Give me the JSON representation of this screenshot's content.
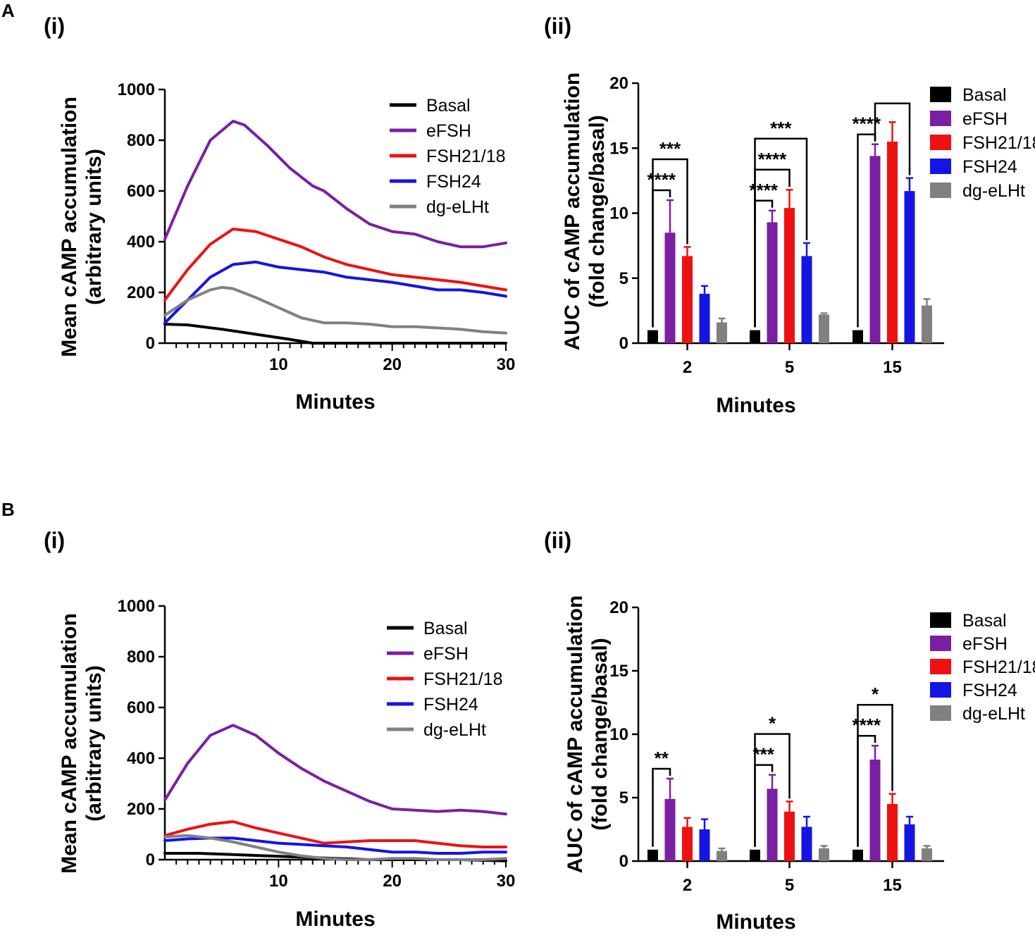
{
  "figure": {
    "panels": [
      {
        "letter": "A",
        "line_sub": "(i)",
        "bar_sub": "(ii)"
      },
      {
        "letter": "B",
        "line_sub": "(i)",
        "bar_sub": "(ii)"
      }
    ]
  },
  "colors": {
    "Basal": "#000000",
    "eFSH": "#7b1fa2",
    "FSH21/18": "#ee1111",
    "FSH24": "#1414e6",
    "dg-eLHt": "#808080"
  },
  "chart_data": [
    {
      "panel": "A(i)",
      "type": "line",
      "title": "",
      "xlabel": "Minutes",
      "ylabel": [
        "Mean cAMP accumulation",
        "(arbitrary units)"
      ],
      "xlim": [
        0,
        30
      ],
      "ylim": [
        0,
        1000
      ],
      "xticks": [
        10,
        20,
        30
      ],
      "yticks": [
        0,
        200,
        400,
        600,
        800,
        1000
      ],
      "legend": "top-right",
      "series": [
        {
          "name": "Basal",
          "x": [
            0,
            2,
            5,
            8,
            11,
            13,
            16,
            20,
            25,
            30
          ],
          "y": [
            75,
            72,
            55,
            35,
            15,
            0,
            0,
            0,
            0,
            0
          ]
        },
        {
          "name": "eFSH",
          "x": [
            0,
            2,
            4,
            6,
            7,
            9,
            11,
            13,
            14,
            16,
            18,
            20,
            22,
            24,
            26,
            28,
            30
          ],
          "y": [
            410,
            620,
            800,
            875,
            860,
            780,
            690,
            620,
            600,
            530,
            470,
            440,
            430,
            400,
            380,
            380,
            395
          ]
        },
        {
          "name": "FSH21/18",
          "x": [
            0,
            2,
            4,
            6,
            8,
            10,
            12,
            14,
            16,
            18,
            20,
            22,
            24,
            26,
            28,
            30
          ],
          "y": [
            170,
            290,
            390,
            450,
            440,
            410,
            380,
            340,
            310,
            290,
            270,
            260,
            250,
            240,
            225,
            210
          ]
        },
        {
          "name": "FSH24",
          "x": [
            0,
            2,
            4,
            6,
            8,
            10,
            12,
            14,
            16,
            18,
            20,
            22,
            24,
            26,
            28,
            30
          ],
          "y": [
            80,
            170,
            260,
            310,
            320,
            300,
            290,
            280,
            260,
            250,
            240,
            225,
            210,
            210,
            200,
            185
          ]
        },
        {
          "name": "dg-eLHt",
          "x": [
            0,
            2,
            4,
            5,
            6,
            8,
            10,
            12,
            14,
            16,
            18,
            20,
            22,
            24,
            26,
            28,
            30
          ],
          "y": [
            110,
            170,
            210,
            220,
            215,
            180,
            140,
            100,
            80,
            80,
            75,
            65,
            65,
            60,
            55,
            45,
            40
          ]
        }
      ]
    },
    {
      "panel": "A(ii)",
      "type": "bar",
      "title": "",
      "xlabel": "Minutes",
      "ylabel": [
        "AUC of cAMP accumulation",
        "(fold change/basal)"
      ],
      "ylim": [
        0,
        20
      ],
      "yticks": [
        0,
        5,
        10,
        15,
        20
      ],
      "categories": [
        "2",
        "5",
        "15"
      ],
      "legend": "top-right",
      "series": [
        {
          "name": "Basal",
          "values": [
            1.0,
            1.0,
            1.0
          ],
          "errors": [
            0,
            0,
            0
          ]
        },
        {
          "name": "eFSH",
          "values": [
            8.5,
            9.3,
            14.4
          ],
          "errors": [
            2.5,
            0.9,
            0.9
          ]
        },
        {
          "name": "FSH21/18",
          "values": [
            6.7,
            10.4,
            15.5
          ],
          "errors": [
            0.7,
            1.4,
            1.5
          ]
        },
        {
          "name": "FSH24",
          "values": [
            3.8,
            6.7,
            11.7
          ],
          "errors": [
            0.6,
            1.0,
            1.0
          ]
        },
        {
          "name": "dg-eLHt",
          "values": [
            1.6,
            2.2,
            2.9
          ],
          "errors": [
            0.3,
            0.1,
            0.5
          ]
        }
      ],
      "annotations": [
        {
          "text": "****",
          "group": 0,
          "from": 0,
          "to": 1
        },
        {
          "text": "***",
          "group": 0,
          "from": 0,
          "to": 2
        },
        {
          "text": "****",
          "group": 1,
          "from": 0,
          "to": 1
        },
        {
          "text": "****",
          "group": 1,
          "from": 0,
          "to": 2
        },
        {
          "text": "***",
          "group": 1,
          "from": 0,
          "to": 3
        },
        {
          "text": "****",
          "group": 2,
          "from": 0,
          "to": 1
        },
        {
          "text": "",
          "group": 2,
          "from": 1,
          "to": 3
        }
      ]
    },
    {
      "panel": "B(i)",
      "type": "line",
      "title": "",
      "xlabel": "Minutes",
      "ylabel": [
        "Mean cAMP accumulation",
        "(arbitrary units)"
      ],
      "xlim": [
        0,
        30
      ],
      "ylim": [
        0,
        1000
      ],
      "xticks": [
        10,
        20,
        30
      ],
      "yticks": [
        0,
        200,
        400,
        600,
        800,
        1000
      ],
      "legend": "top-right",
      "series": [
        {
          "name": "Basal",
          "x": [
            0,
            3,
            6,
            9,
            12,
            15,
            18,
            22,
            26,
            30
          ],
          "y": [
            25,
            25,
            20,
            15,
            10,
            5,
            0,
            0,
            0,
            -5
          ]
        },
        {
          "name": "eFSH",
          "x": [
            0,
            2,
            4,
            6,
            8,
            10,
            12,
            14,
            16,
            18,
            20,
            22,
            24,
            26,
            28,
            30
          ],
          "y": [
            235,
            380,
            490,
            530,
            490,
            420,
            360,
            310,
            270,
            230,
            200,
            195,
            190,
            195,
            190,
            180
          ]
        },
        {
          "name": "FSH21/18",
          "x": [
            0,
            2,
            4,
            6,
            8,
            10,
            12,
            14,
            16,
            18,
            20,
            22,
            24,
            26,
            28,
            30
          ],
          "y": [
            95,
            120,
            140,
            150,
            125,
            105,
            85,
            65,
            70,
            75,
            75,
            75,
            65,
            55,
            50,
            50
          ]
        },
        {
          "name": "FSH24",
          "x": [
            0,
            2,
            4,
            6,
            8,
            10,
            12,
            14,
            16,
            18,
            20,
            22,
            24,
            26,
            28,
            30
          ],
          "y": [
            75,
            82,
            85,
            85,
            75,
            65,
            60,
            55,
            50,
            40,
            30,
            30,
            25,
            25,
            30,
            30
          ]
        },
        {
          "name": "dg-eLHt",
          "x": [
            0,
            2,
            4,
            6,
            8,
            10,
            12,
            14,
            16,
            18,
            20,
            22,
            24,
            26,
            28,
            30
          ],
          "y": [
            90,
            95,
            85,
            70,
            50,
            30,
            15,
            5,
            0,
            0,
            5,
            5,
            0,
            0,
            0,
            5
          ]
        }
      ]
    },
    {
      "panel": "B(ii)",
      "type": "bar",
      "title": "",
      "xlabel": "Minutes",
      "ylabel": [
        "AUC of cAMP accumulation",
        "(fold change/basal)"
      ],
      "ylim": [
        0,
        20
      ],
      "yticks": [
        0,
        5,
        10,
        15,
        20
      ],
      "categories": [
        "2",
        "5",
        "15"
      ],
      "legend": "top-right",
      "series": [
        {
          "name": "Basal",
          "values": [
            0.9,
            0.9,
            0.9
          ],
          "errors": [
            0,
            0,
            0
          ]
        },
        {
          "name": "eFSH",
          "values": [
            4.9,
            5.7,
            8.0
          ],
          "errors": [
            1.6,
            1.1,
            1.1
          ]
        },
        {
          "name": "FSH21/18",
          "values": [
            2.7,
            3.9,
            4.5
          ],
          "errors": [
            0.7,
            0.8,
            0.8
          ]
        },
        {
          "name": "FSH24",
          "values": [
            2.5,
            2.7,
            2.9
          ],
          "errors": [
            0.8,
            0.8,
            0.6
          ]
        },
        {
          "name": "dg-eLHt",
          "values": [
            0.8,
            1.0,
            1.0
          ],
          "errors": [
            0.2,
            0.2,
            0.2
          ]
        }
      ],
      "annotations": [
        {
          "text": "**",
          "group": 0,
          "from": 0,
          "to": 1
        },
        {
          "text": "***",
          "group": 1,
          "from": 0,
          "to": 1
        },
        {
          "text": "*",
          "group": 1,
          "from": 0,
          "to": 2
        },
        {
          "text": "****",
          "group": 2,
          "from": 0,
          "to": 1
        },
        {
          "text": "*",
          "group": 2,
          "from": 0,
          "to": 2
        }
      ]
    }
  ]
}
